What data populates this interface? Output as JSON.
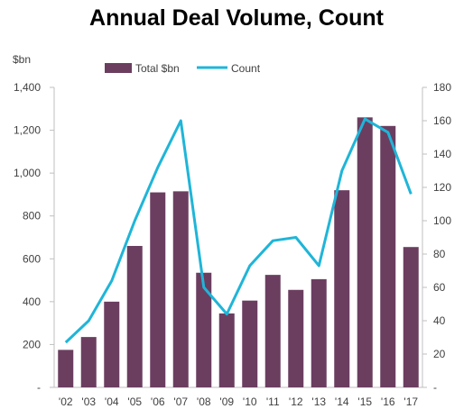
{
  "chart_data": {
    "type": "bar",
    "title": "Annual Deal Volume, Count",
    "y_unit_left": "$bn",
    "categories": [
      "'02",
      "'03",
      "'04",
      "'05",
      "'06",
      "'07",
      "'08",
      "'09",
      "'10",
      "'11",
      "'12",
      "'13",
      "'14",
      "'15",
      "'16",
      "'17"
    ],
    "series": [
      {
        "name": "Total $bn",
        "type": "bar",
        "axis": "left",
        "color": "#6b3e60",
        "values": [
          175,
          235,
          400,
          660,
          910,
          915,
          535,
          345,
          405,
          525,
          455,
          505,
          920,
          1260,
          1220,
          655
        ]
      },
      {
        "name": "Count",
        "type": "line",
        "axis": "right",
        "color": "#1fb5d8",
        "values": [
          27,
          40,
          64,
          100,
          132,
          160,
          60,
          44,
          73,
          88,
          90,
          73,
          130,
          161,
          153,
          116
        ]
      }
    ],
    "y_left": {
      "ylim": [
        0,
        1400
      ],
      "ticks": [
        0,
        200,
        400,
        600,
        800,
        1000,
        1200,
        1400
      ],
      "tick_labels": [
        "-",
        "200",
        "400",
        "600",
        "800",
        "1,000",
        "1,200",
        "1,400"
      ]
    },
    "y_right": {
      "ylim": [
        0,
        180
      ],
      "ticks": [
        0,
        20,
        40,
        60,
        80,
        100,
        120,
        140,
        160,
        180
      ],
      "tick_labels": [
        "-",
        "20",
        "40",
        "60",
        "80",
        "100",
        "120",
        "140",
        "160",
        "180"
      ]
    },
    "legend": "top-center",
    "grid": false
  }
}
